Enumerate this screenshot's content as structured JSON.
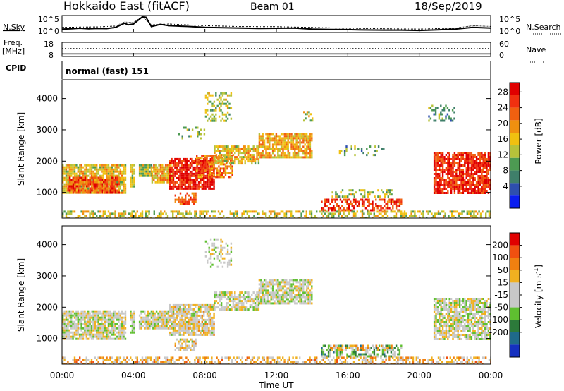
{
  "header": {
    "station": "Hokkaido East (fitACF)",
    "beam": "Beam 01",
    "date": "18/Sep/2019"
  },
  "noise_panel": {
    "left_label": "N.Sky",
    "right_label": "N.Search",
    "left_ticks": [
      "10^5",
      "10^0"
    ],
    "right_ticks": [
      "10^5",
      "10^0"
    ],
    "series": [
      {
        "name": "N.Sky",
        "style": "solid",
        "x_hours": [
          0,
          0.5,
          1,
          1.5,
          2,
          2.5,
          3,
          3.5,
          3.7,
          4,
          4.5,
          4.7,
          5,
          5.5,
          6,
          7,
          8,
          9,
          10,
          11,
          12,
          13,
          14,
          15,
          16,
          17,
          18,
          19,
          20,
          21,
          22,
          23,
          24
        ],
        "y_frac": [
          0.2,
          0.22,
          0.25,
          0.22,
          0.24,
          0.23,
          0.3,
          0.55,
          0.45,
          0.5,
          0.92,
          0.9,
          0.35,
          0.48,
          0.4,
          0.36,
          0.3,
          0.28,
          0.26,
          0.24,
          0.25,
          0.26,
          0.2,
          0.18,
          0.17,
          0.15,
          0.14,
          0.14,
          0.12,
          0.16,
          0.2,
          0.3,
          0.26
        ]
      },
      {
        "name": "N.Search",
        "style": "dotted",
        "x_hours": [
          0,
          1,
          2,
          3,
          3.5,
          4,
          4.5,
          5,
          6,
          8,
          10,
          12,
          14,
          16,
          18,
          20,
          22,
          23,
          24
        ],
        "y_frac": [
          0.3,
          0.32,
          0.33,
          0.38,
          0.62,
          0.58,
          0.95,
          0.45,
          0.5,
          0.4,
          0.35,
          0.34,
          0.3,
          0.25,
          0.22,
          0.2,
          0.26,
          0.4,
          0.36
        ]
      }
    ]
  },
  "freq_panel": {
    "left_label_1": "Freq.",
    "left_label_2": "[MHz]",
    "right_label": "Nave",
    "left_ticks": [
      "18",
      "8"
    ],
    "right_ticks": [
      "60",
      "0"
    ],
    "freq_level_frac": 0.18,
    "nave_level_frac": 0.55
  },
  "cpid_panel": {
    "label": "CPID",
    "text": "normal (fast) 151"
  },
  "chart_data": [
    {
      "type": "heatmap",
      "name": "power",
      "ylabel": "Slant Range [km]",
      "y_ticks": [
        1000,
        2000,
        3000,
        4000
      ],
      "ylim": [
        180,
        4600
      ],
      "xlim": [
        0,
        24
      ],
      "colorbar": {
        "label": "Power [dB]",
        "ticks": [
          "4",
          "8",
          "12",
          "16",
          "20",
          "24",
          "28"
        ],
        "colors": [
          "#0a1ef0",
          "#2e4fae",
          "#3f7f6a",
          "#4d9a52",
          "#b6c23a",
          "#f0c010",
          "#f09010",
          "#f06010",
          "#f03010",
          "#e00000"
        ]
      },
      "regions": [
        {
          "t0": 0.0,
          "t1": 3.6,
          "r0": 1000,
          "r1": 1900,
          "level": 0.55,
          "density": 0.85
        },
        {
          "t0": 0.3,
          "t1": 3.2,
          "r0": 1000,
          "r1": 1500,
          "level": 0.8,
          "density": 0.8
        },
        {
          "t0": 3.8,
          "t1": 4.0,
          "r0": 1200,
          "r1": 1900,
          "level": 0.5,
          "density": 0.9
        },
        {
          "t0": 4.3,
          "t1": 5.0,
          "r0": 1500,
          "r1": 1900,
          "level": 0.45,
          "density": 0.9
        },
        {
          "t0": 5.0,
          "t1": 6.2,
          "r0": 1300,
          "r1": 1900,
          "level": 0.6,
          "density": 0.85
        },
        {
          "t0": 6.0,
          "t1": 8.5,
          "r0": 1100,
          "r1": 2100,
          "level": 0.9,
          "density": 0.85
        },
        {
          "t0": 6.3,
          "t1": 7.5,
          "r0": 600,
          "r1": 1000,
          "level": 0.75,
          "density": 0.6
        },
        {
          "t0": 7.5,
          "t1": 9.5,
          "r0": 1500,
          "r1": 2200,
          "level": 0.7,
          "density": 0.6
        },
        {
          "t0": 8.5,
          "t1": 11.0,
          "r0": 1900,
          "r1": 2500,
          "level": 0.55,
          "density": 0.75
        },
        {
          "t0": 11.0,
          "t1": 14.0,
          "r0": 2100,
          "r1": 2900,
          "level": 0.6,
          "density": 0.8
        },
        {
          "t0": 8.0,
          "t1": 9.5,
          "r0": 3300,
          "r1": 4200,
          "level": 0.45,
          "density": 0.35
        },
        {
          "t0": 6.5,
          "t1": 8.0,
          "r0": 2700,
          "r1": 3100,
          "level": 0.4,
          "density": 0.3
        },
        {
          "t0": 13.5,
          "t1": 14.0,
          "r0": 3300,
          "r1": 3600,
          "level": 0.5,
          "density": 0.4
        },
        {
          "t0": 14.5,
          "t1": 19.0,
          "r0": 400,
          "r1": 800,
          "level": 0.85,
          "density": 0.55
        },
        {
          "t0": 15.0,
          "t1": 18.5,
          "r0": 850,
          "r1": 1100,
          "level": 0.45,
          "density": 0.4
        },
        {
          "t0": 15.5,
          "t1": 18.0,
          "r0": 2200,
          "r1": 2500,
          "level": 0.35,
          "density": 0.25
        },
        {
          "t0": 20.8,
          "t1": 24.0,
          "r0": 1000,
          "r1": 2300,
          "level": 0.88,
          "density": 0.8
        },
        {
          "t0": 20.5,
          "t1": 22.0,
          "r0": 3300,
          "r1": 3800,
          "level": 0.35,
          "density": 0.3
        },
        {
          "t0": 0.0,
          "t1": 24.0,
          "r0": 180,
          "r1": 420,
          "level": 0.5,
          "density": 0.5
        }
      ]
    },
    {
      "type": "heatmap",
      "name": "velocity",
      "ylabel": "Slant Range [km]",
      "y_ticks": [
        1000,
        2000,
        3000,
        4000
      ],
      "ylim": [
        180,
        4600
      ],
      "xlim": [
        0,
        24
      ],
      "xlabel": "Time UT",
      "x_ticks": [
        "00:00",
        "04:00",
        "08:00",
        "12:00",
        "16:00",
        "20:00",
        "00:00"
      ],
      "colorbar": {
        "label": "Velocity [m s-1]",
        "ticks": [
          "200",
          "100",
          "50",
          "15",
          "-15",
          "-50",
          "-100",
          "-200"
        ],
        "colors": [
          "#1530c0",
          "#1f6a8a",
          "#2c7a3a",
          "#5fbf30",
          "#c8c8c8",
          "#c8c8c8",
          "#f0b020",
          "#f08010",
          "#f05010",
          "#e00000"
        ]
      },
      "regions": [
        {
          "t0": 0.0,
          "t1": 3.6,
          "r0": 1000,
          "r1": 1900,
          "level": 0.5,
          "density": 0.85
        },
        {
          "t0": 3.8,
          "t1": 4.0,
          "r0": 1200,
          "r1": 1900,
          "level": 0.5,
          "density": 0.9
        },
        {
          "t0": 4.3,
          "t1": 6.2,
          "r0": 1300,
          "r1": 1900,
          "level": 0.5,
          "density": 0.85
        },
        {
          "t0": 6.0,
          "t1": 8.5,
          "r0": 1100,
          "r1": 2100,
          "level": 0.55,
          "density": 0.85
        },
        {
          "t0": 6.3,
          "t1": 7.5,
          "r0": 600,
          "r1": 1000,
          "level": 0.55,
          "density": 0.6
        },
        {
          "t0": 8.5,
          "t1": 11.0,
          "r0": 1900,
          "r1": 2500,
          "level": 0.5,
          "density": 0.75
        },
        {
          "t0": 11.0,
          "t1": 14.0,
          "r0": 2100,
          "r1": 2900,
          "level": 0.5,
          "density": 0.8
        },
        {
          "t0": 8.0,
          "t1": 9.5,
          "r0": 3300,
          "r1": 4200,
          "level": 0.5,
          "density": 0.35
        },
        {
          "t0": 14.5,
          "t1": 19.0,
          "r0": 400,
          "r1": 800,
          "level": 0.35,
          "density": 0.55
        },
        {
          "t0": 15.0,
          "t1": 18.5,
          "r0": 600,
          "r1": 800,
          "level": 0.62,
          "density": 0.5
        },
        {
          "t0": 20.8,
          "t1": 24.0,
          "r0": 1000,
          "r1": 2300,
          "level": 0.5,
          "density": 0.8
        },
        {
          "t0": 0.0,
          "t1": 24.0,
          "r0": 180,
          "r1": 420,
          "level": 0.65,
          "density": 0.5
        }
      ]
    }
  ]
}
